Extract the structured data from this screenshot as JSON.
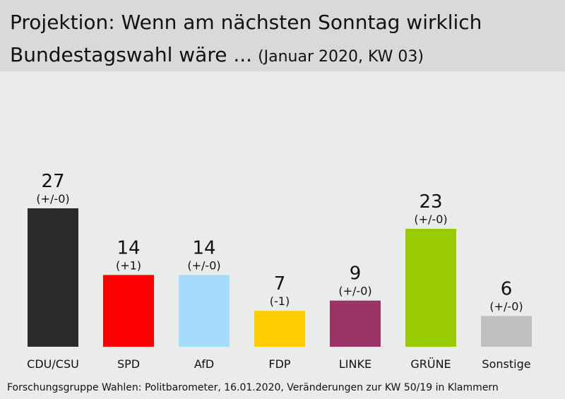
{
  "header": {
    "title_line1": "Projektion: Wenn am nächsten Sonntag wirklich",
    "title_line2": "Bundestagswahl wäre ...",
    "subtitle": "(Januar 2020, KW 03)"
  },
  "chart_data": {
    "type": "bar",
    "title": "Projektion: Wenn am nächsten Sonntag wirklich Bundestagswahl wäre ... (Januar 2020, KW 03)",
    "categories": [
      "CDU/CSU",
      "SPD",
      "AfD",
      "FDP",
      "LINKE",
      "GRÜNE",
      "Sonstige"
    ],
    "values": [
      27,
      14,
      14,
      7,
      9,
      23,
      6
    ],
    "changes": [
      "(+/-0)",
      "(+1)",
      "(+/-0)",
      "(-1)",
      "(+/-0)",
      "(+/-0)",
      "(+/-0)"
    ],
    "colors": [
      "#2b2b2b",
      "#ff0000",
      "#a5dcfb",
      "#ffcc00",
      "#993366",
      "#99cc00",
      "#c0c0c0"
    ],
    "ylim": [
      0,
      30
    ],
    "grid": false,
    "legend": "none"
  },
  "footer": {
    "source": "Forschungsgruppe Wahlen: Politbarometer, 16.01.2020, Veränderungen zur KW 50/19 in Klammern"
  }
}
